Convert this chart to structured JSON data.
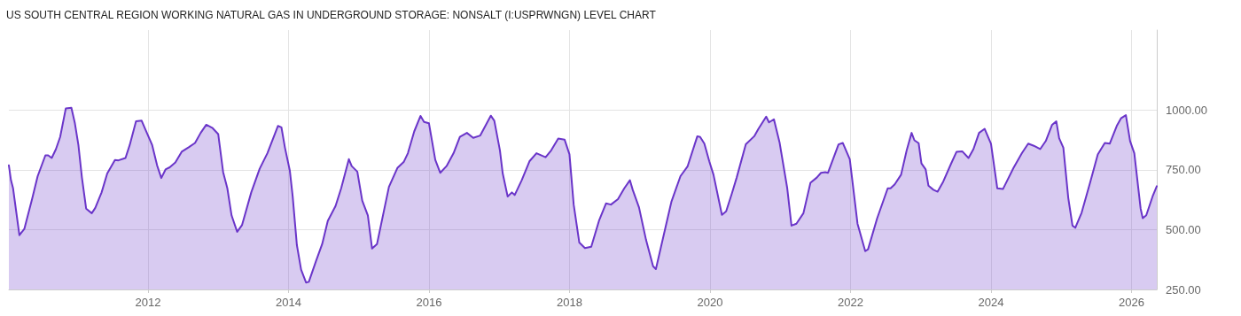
{
  "chart_data": {
    "type": "area",
    "title": "US SOUTH CENTRAL REGION WORKING NATURAL GAS IN UNDERGROUND STORAGE: NONSALT (I:USPRWNGN) LEVEL CHART",
    "x": [
      2010.02,
      2010.05,
      2010.08,
      2010.17,
      2010.24,
      2010.35,
      2010.43,
      2010.54,
      2010.58,
      2010.63,
      2010.69,
      2010.75,
      2010.83,
      2010.91,
      2010.96,
      2011.01,
      2011.06,
      2011.12,
      2011.2,
      2011.25,
      2011.34,
      2011.42,
      2011.53,
      2011.58,
      2011.68,
      2011.74,
      2011.83,
      2011.91,
      2011.96,
      2012.06,
      2012.13,
      2012.19,
      2012.25,
      2012.31,
      2012.39,
      2012.48,
      2012.58,
      2012.67,
      2012.75,
      2012.83,
      2012.92,
      2013.0,
      2013.07,
      2013.13,
      2013.19,
      2013.27,
      2013.34,
      2013.47,
      2013.59,
      2013.7,
      2013.85,
      2013.9,
      2013.95,
      2014.02,
      2014.06,
      2014.12,
      2014.18,
      2014.25,
      2014.29,
      2014.39,
      2014.48,
      2014.56,
      2014.67,
      2014.75,
      2014.86,
      2014.9,
      2014.98,
      2015.05,
      2015.13,
      2015.19,
      2015.26,
      2015.43,
      2015.55,
      2015.64,
      2015.7,
      2015.79,
      2015.88,
      2015.93,
      2016.0,
      2016.09,
      2016.16,
      2016.25,
      2016.35,
      2016.44,
      2016.54,
      2016.63,
      2016.73,
      2016.88,
      2016.93,
      2017.01,
      2017.05,
      2017.12,
      2017.18,
      2017.22,
      2017.32,
      2017.43,
      2017.53,
      2017.66,
      2017.74,
      2017.84,
      2017.93,
      2018.0,
      2018.06,
      2018.14,
      2018.22,
      2018.31,
      2018.42,
      2018.52,
      2018.59,
      2018.69,
      2018.78,
      2018.86,
      2018.9,
      2018.99,
      2019.09,
      2019.19,
      2019.23,
      2019.33,
      2019.45,
      2019.58,
      2019.68,
      2019.82,
      2019.86,
      2019.92,
      2019.99,
      2020.05,
      2020.17,
      2020.23,
      2020.31,
      2020.38,
      2020.51,
      2020.63,
      2020.69,
      2020.8,
      2020.84,
      2020.91,
      2020.99,
      2021.1,
      2021.16,
      2021.23,
      2021.33,
      2021.43,
      2021.52,
      2021.58,
      2021.64,
      2021.68,
      2021.83,
      2021.89,
      2021.99,
      2022.1,
      2022.21,
      2022.25,
      2022.38,
      2022.53,
      2022.57,
      2022.63,
      2022.72,
      2022.8,
      2022.87,
      2022.91,
      2022.97,
      2023.01,
      2023.07,
      2023.11,
      2023.18,
      2023.24,
      2023.32,
      2023.43,
      2023.51,
      2023.59,
      2023.68,
      2023.75,
      2023.83,
      2023.91,
      2024.0,
      2024.09,
      2024.17,
      2024.23,
      2024.32,
      2024.44,
      2024.53,
      2024.61,
      2024.7,
      2024.78,
      2024.87,
      2024.93,
      2024.97,
      2025.03,
      2025.1,
      2025.16,
      2025.2,
      2025.29,
      2025.41,
      2025.52,
      2025.62,
      2025.69,
      2025.79,
      2025.85,
      2025.92,
      2025.98,
      2026.04,
      2026.13,
      2026.16,
      2026.21,
      2026.3,
      2026.36
    ],
    "series": [
      {
        "color": "#6a35c9",
        "values": [
          769,
          707,
          673,
          477,
          503,
          628,
          724,
          811,
          811,
          800,
          837,
          888,
          1007,
          1010,
          945,
          854,
          718,
          588,
          569,
          591,
          656,
          735,
          792,
          790,
          800,
          854,
          954,
          956,
          922,
          854,
          769,
          716,
          752,
          761,
          781,
          826,
          845,
          863,
          905,
          939,
          925,
          900,
          741,
          673,
          560,
          491,
          520,
          656,
          755,
          820,
          934,
          928,
          843,
          746,
          639,
          435,
          333,
          279,
          282,
          367,
          440,
          537,
          599,
          673,
          795,
          766,
          743,
          622,
          560,
          421,
          440,
          679,
          758,
          783,
          820,
          911,
          976,
          951,
          945,
          792,
          738,
          766,
          820,
          888,
          905,
          884,
          894,
          977,
          956,
          832,
          735,
          639,
          656,
          645,
          707,
          786,
          820,
          803,
          832,
          881,
          877,
          815,
          605,
          446,
          423,
          429,
          537,
          610,
          605,
          628,
          673,
          707,
          667,
          593,
          457,
          347,
          335,
          463,
          616,
          724,
          764,
          891,
          888,
          860,
          786,
          730,
          562,
          577,
          650,
          718,
          857,
          891,
          922,
          973,
          949,
          962,
          866,
          673,
          517,
          525,
          569,
          696,
          718,
          738,
          741,
          738,
          857,
          863,
          795,
          525,
          410,
          418,
          548,
          673,
          673,
          690,
          730,
          832,
          905,
          874,
          862,
          777,
          752,
          684,
          667,
          659,
          701,
          775,
          826,
          828,
          800,
          837,
          905,
          922,
          860,
          673,
          670,
          705,
          758,
          820,
          860,
          851,
          837,
          871,
          939,
          953,
          883,
          843,
          633,
          517,
          508,
          571,
          696,
          815,
          863,
          860,
          934,
          966,
          979,
          871,
          820,
          588,
          548,
          560,
          639,
          682
        ]
      }
    ],
    "xlim": [
      2010.02,
      2026.36
    ],
    "xticks": [
      2012,
      2014,
      2016,
      2018,
      2020,
      2022,
      2024,
      2026
    ],
    "ylim": [
      250,
      1335
    ],
    "yticks": [
      {
        "value": 250,
        "label": "250.00"
      },
      {
        "value": 500,
        "label": "500.00"
      },
      {
        "value": 750,
        "label": "750.00"
      },
      {
        "value": 1000,
        "label": "1000.00"
      }
    ],
    "grid": true,
    "marker": "none",
    "line_style": "solid"
  }
}
